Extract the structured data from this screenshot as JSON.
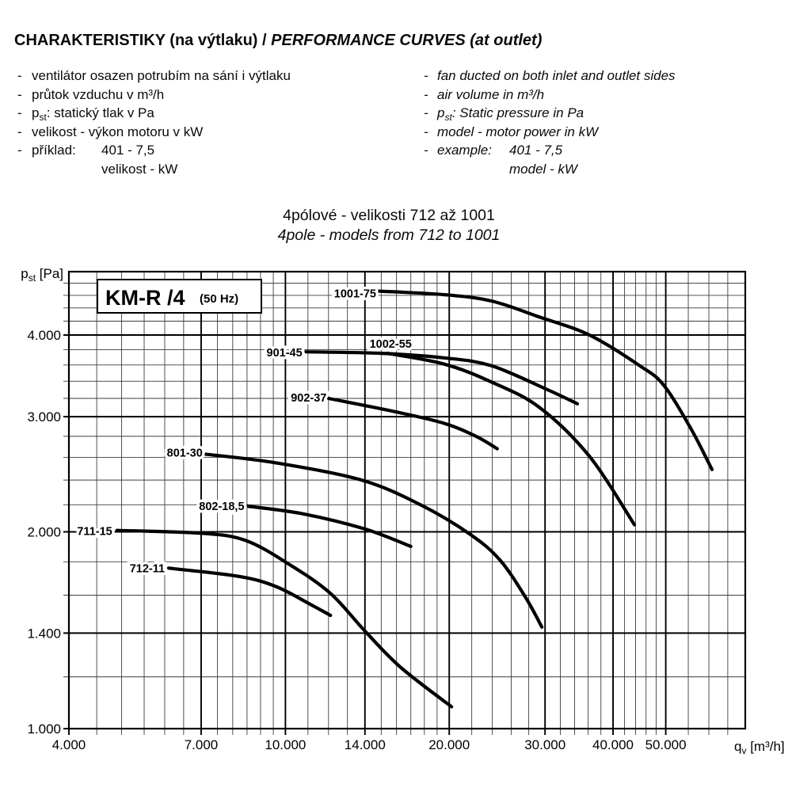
{
  "header": {
    "title_cs": "CHARAKTERISTIKY (na výtlaku) /",
    "title_en": "PERFORMANCE CURVES (at outlet)",
    "bullets": {
      "dash": "-",
      "cs1": "ventilátor osazen potrubím na sání i výtlaku",
      "cs2": "průtok vzduchu v m³/h",
      "cs3_p": "p",
      "cs3_sub": "st",
      "cs3_rest": ": statický tlak v Pa",
      "cs4": "velikost - výkon motoru v kW",
      "cs5_label": "příklad:",
      "cs5_value": "401 - 7,5",
      "cs6": "velikost - kW",
      "en1": "fan ducted on both inlet and outlet sides",
      "en2": "air volume in m³/h",
      "en3_p": "p",
      "en3_sub": "st",
      "en3_rest": ": Static pressure in Pa",
      "en4": "model - motor power in kW",
      "en5_label": "example:",
      "en5_value": "401 - 7,5",
      "en6": "model - kW"
    },
    "subtitle_cs": "4pólové - velikosti 712 až 1001",
    "subtitle_en": "4pole - models from 712 to 1001"
  },
  "chart_data": {
    "type": "line",
    "title": "KM-R /4",
    "title_suffix": "(50 Hz)",
    "xscale": "log",
    "yscale": "log",
    "grid": true,
    "legend_position": "labels-on-curves",
    "xlim": [
      4000,
      70000
    ],
    "ylim": [
      1000,
      5000
    ],
    "xlabel": {
      "sym": "q",
      "sub": "v",
      "unit": " [m³/h]"
    },
    "ylabel": {
      "sym": "p",
      "sub": "st",
      "unit": " [Pa]"
    },
    "x_ticks": [
      {
        "v": 4000,
        "label": "4.000"
      },
      {
        "v": 7000,
        "label": "7.000"
      },
      {
        "v": 10000,
        "label": "10.000"
      },
      {
        "v": 14000,
        "label": "14.000"
      },
      {
        "v": 20000,
        "label": "20.000"
      },
      {
        "v": 30000,
        "label": "30.000"
      },
      {
        "v": 40000,
        "label": "40.000"
      },
      {
        "v": 50000,
        "label": "50.000"
      }
    ],
    "y_ticks": [
      {
        "v": 1000,
        "label": "1.000"
      },
      {
        "v": 1400,
        "label": "1.400"
      },
      {
        "v": 2000,
        "label": "2.000"
      },
      {
        "v": 3000,
        "label": "3.000"
      },
      {
        "v": 4000,
        "label": "4.000"
      }
    ],
    "x_minor": [
      4500,
      5000,
      5500,
      6000,
      6500,
      7500,
      8000,
      8500,
      9000,
      9500,
      11000,
      12000,
      13000,
      15000,
      16000,
      17000,
      18000,
      19000,
      22000,
      24000,
      26000,
      28000,
      32000,
      34000,
      36000,
      38000,
      42000,
      44000,
      46000,
      48000,
      55000,
      60000,
      65000
    ],
    "y_minor": [
      1200,
      1600,
      1800,
      2200,
      2400,
      2600,
      2800,
      3200,
      3400,
      3600,
      3800,
      4200,
      4400,
      4600,
      4800
    ],
    "series": [
      {
        "name": "1001-75",
        "points": [
          [
            14800,
            4670
          ],
          [
            19600,
            4610
          ],
          [
            23900,
            4510
          ],
          [
            29100,
            4270
          ],
          [
            36200,
            4000
          ],
          [
            44800,
            3590
          ],
          [
            49600,
            3350
          ],
          [
            55700,
            2870
          ],
          [
            60800,
            2490
          ]
        ],
        "label_dx": -29,
        "label_dy": 3
      },
      {
        "name": "1002-55",
        "points": [
          [
            15400,
            3750
          ],
          [
            19600,
            3610
          ],
          [
            23900,
            3390
          ],
          [
            29300,
            3100
          ],
          [
            36200,
            2610
          ],
          [
            43800,
            2050
          ]
        ],
        "label_dx": 4,
        "label_dy": -12
      },
      {
        "name": "901-45",
        "points": [
          [
            10900,
            3770
          ],
          [
            15000,
            3750
          ],
          [
            19600,
            3690
          ],
          [
            23900,
            3590
          ],
          [
            30300,
            3300
          ],
          [
            34400,
            3140
          ]
        ],
        "label_dx": -27,
        "label_dy": 1
      },
      {
        "name": "902-37",
        "points": [
          [
            12000,
            3200
          ],
          [
            16000,
            3050
          ],
          [
            19600,
            2930
          ],
          [
            22400,
            2800
          ],
          [
            24500,
            2680
          ]
        ],
        "label_dx": -25,
        "label_dy": -1
      },
      {
        "name": "801-30",
        "points": [
          [
            7100,
            2630
          ],
          [
            9600,
            2550
          ],
          [
            13800,
            2400
          ],
          [
            17700,
            2200
          ],
          [
            21900,
            1980
          ],
          [
            24800,
            1810
          ],
          [
            27600,
            1590
          ],
          [
            29600,
            1430
          ]
        ],
        "label_dx": -25,
        "label_dy": -2
      },
      {
        "name": "802-18,5",
        "points": [
          [
            8500,
            2190
          ],
          [
            10800,
            2130
          ],
          [
            14000,
            2020
          ],
          [
            17000,
            1900
          ]
        ],
        "label_dx": -32,
        "label_dy": 0
      },
      {
        "name": "711-15",
        "points": [
          [
            4900,
            2010
          ],
          [
            7000,
            1990
          ],
          [
            8450,
            1940
          ],
          [
            10200,
            1780
          ],
          [
            12100,
            1610
          ],
          [
            14000,
            1410
          ],
          [
            16300,
            1240
          ],
          [
            20200,
            1080
          ]
        ],
        "label_dx": -28,
        "label_dy": 1
      },
      {
        "name": "712-11",
        "points": [
          [
            6100,
            1760
          ],
          [
            8200,
            1710
          ],
          [
            9600,
            1650
          ],
          [
            11100,
            1550
          ],
          [
            12100,
            1490
          ]
        ],
        "label_dx": -27,
        "label_dy": 0
      }
    ]
  }
}
